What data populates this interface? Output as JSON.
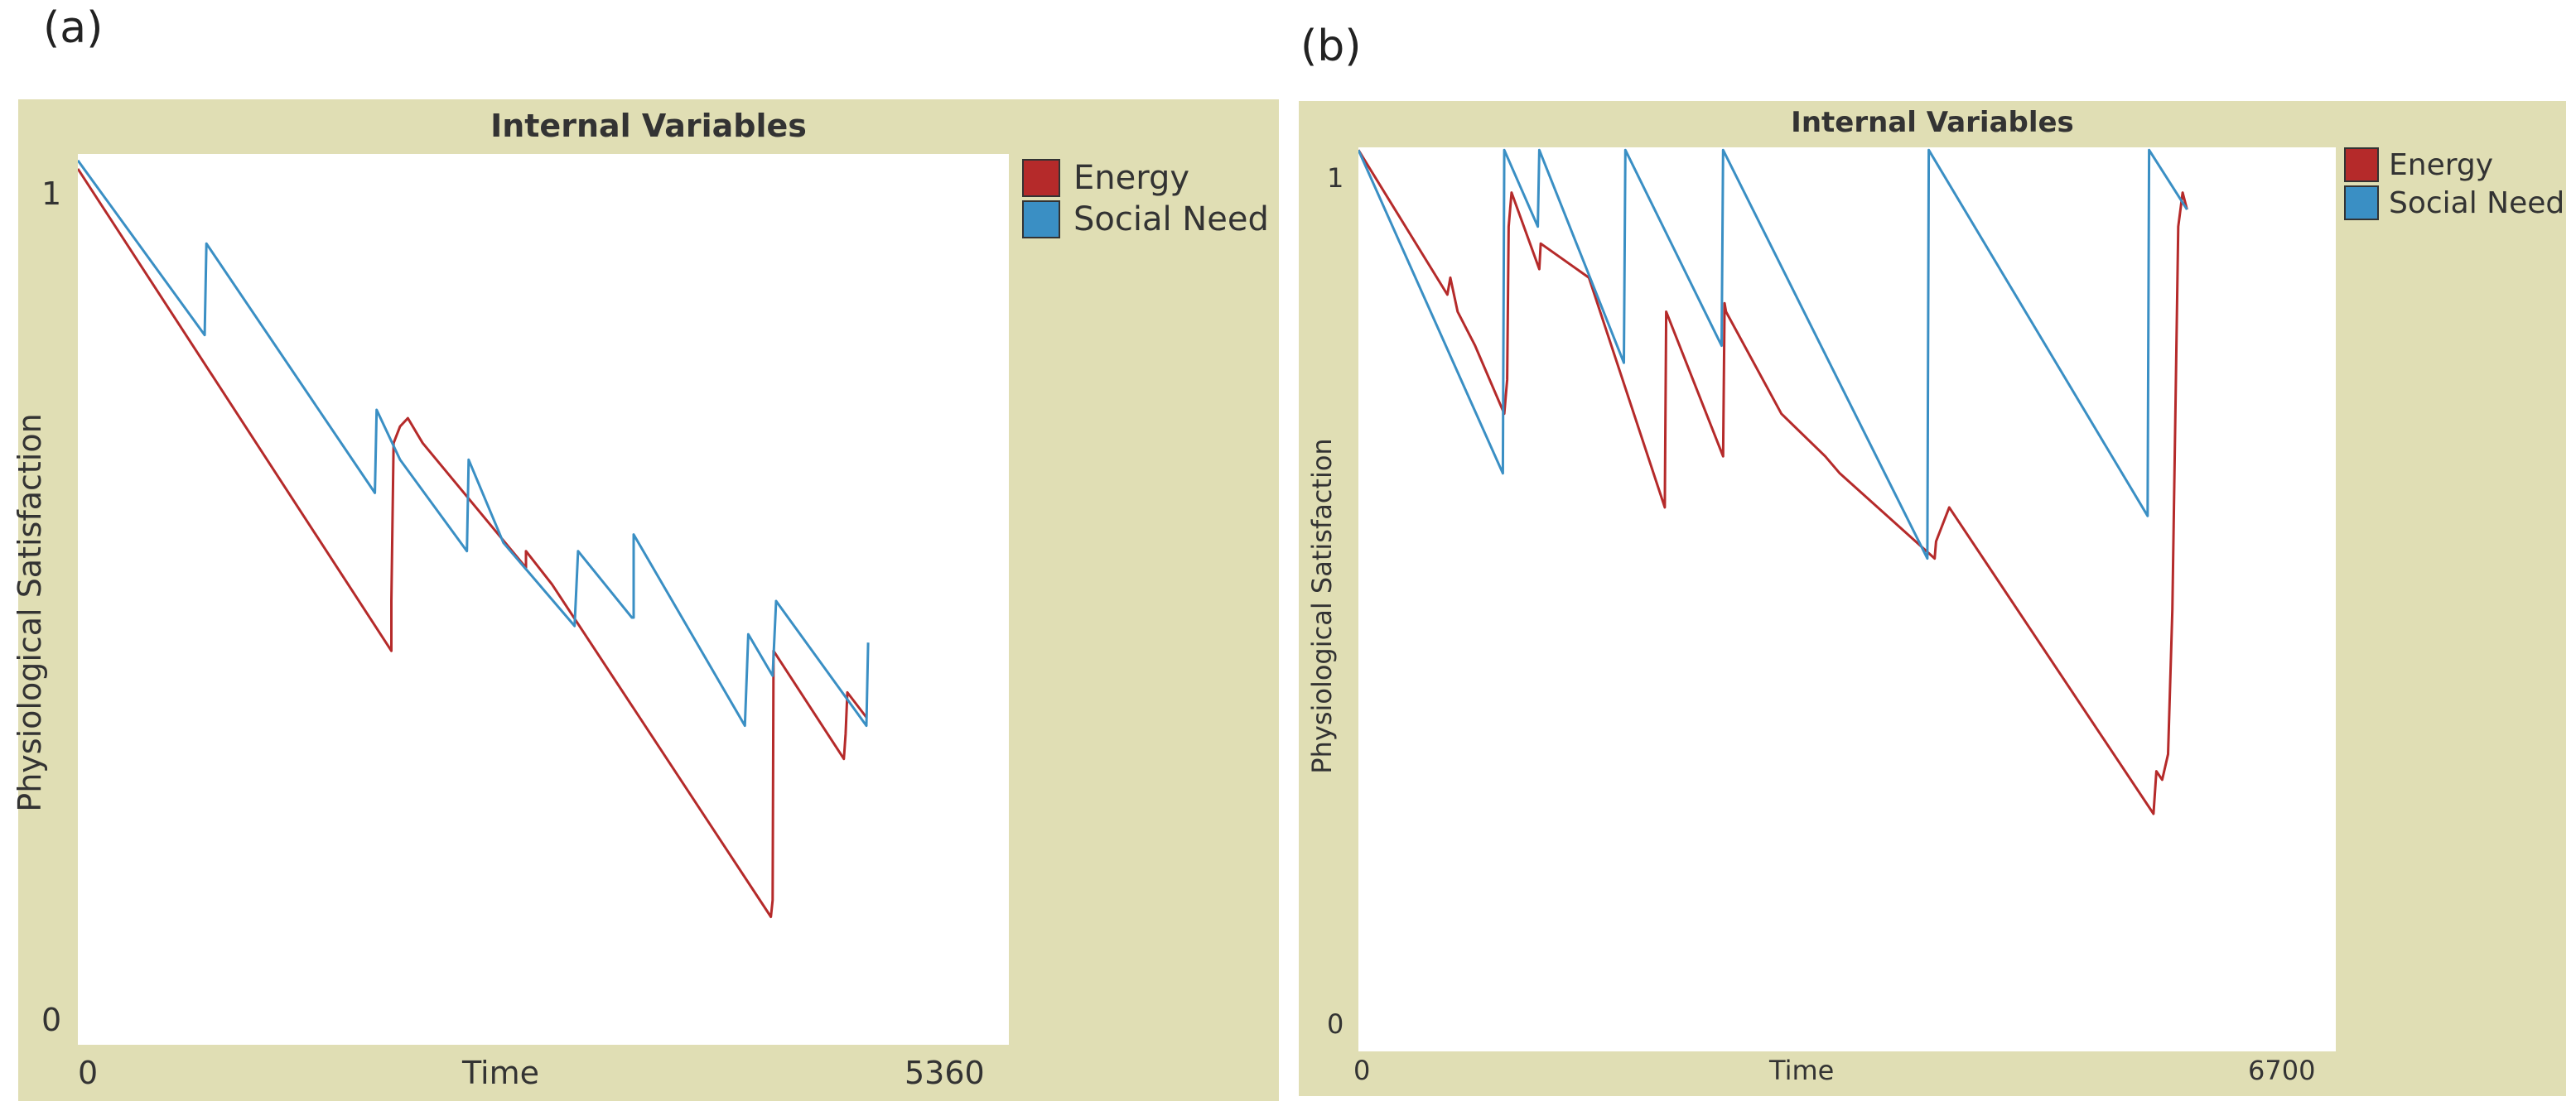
{
  "panels": {
    "a": {
      "label": "(a)"
    },
    "b": {
      "label": "(b)"
    }
  },
  "colors": {
    "energy": "#b52a2a",
    "social_need": "#3a8fc4",
    "frame": "#e0deb4"
  },
  "chart_data": [
    {
      "type": "line",
      "title": "Internal Variables",
      "xlabel": "Time",
      "ylabel": "Physiological Satisfaction",
      "xlim": [
        0,
        5360
      ],
      "ylim": [
        0,
        1
      ],
      "x_tick_labels": [
        "0",
        "5360"
      ],
      "y_tick_labels": [
        "0",
        "1"
      ],
      "legend": "right",
      "series": [
        {
          "name": "Energy",
          "color": "#b52a2a",
          "points": [
            [
              0,
              1.03
            ],
            [
              1805,
              0.45
            ],
            [
              1805,
              0.51
            ],
            [
              1818,
              0.7
            ],
            [
              1855,
              0.72
            ],
            [
              1900,
              0.73
            ],
            [
              1985,
              0.7
            ],
            [
              2580,
              0.55
            ],
            [
              2580,
              0.57
            ],
            [
              2730,
              0.53
            ],
            [
              3990,
              0.13
            ],
            [
              4000,
              0.15
            ],
            [
              4005,
              0.45
            ],
            [
              4410,
              0.32
            ],
            [
              4420,
              0.35
            ],
            [
              4430,
              0.4
            ],
            [
              4540,
              0.37
            ]
          ]
        },
        {
          "name": "Social Need",
          "color": "#3a8fc4",
          "points": [
            [
              0,
              1.04
            ],
            [
              730,
              0.83
            ],
            [
              740,
              0.94
            ],
            [
              1710,
              0.64
            ],
            [
              1720,
              0.74
            ],
            [
              1855,
              0.68
            ],
            [
              2240,
              0.57
            ],
            [
              2250,
              0.68
            ],
            [
              2450,
              0.58
            ],
            [
              2860,
              0.48
            ],
            [
              2880,
              0.57
            ],
            [
              3190,
              0.49
            ],
            [
              3200,
              0.49
            ],
            [
              3200,
              0.59
            ],
            [
              3840,
              0.36
            ],
            [
              3860,
              0.47
            ],
            [
              4000,
              0.42
            ],
            [
              4020,
              0.51
            ],
            [
              4540,
              0.36
            ],
            [
              4550,
              0.46
            ]
          ]
        }
      ]
    },
    {
      "type": "line",
      "title": "Internal Variables",
      "xlabel": "Time",
      "ylabel": "Physiological Satisfaction",
      "xlim": [
        0,
        6700
      ],
      "ylim": [
        0,
        1
      ],
      "x_tick_labels": [
        "0",
        "6700"
      ],
      "y_tick_labels": [
        "0",
        "1"
      ],
      "legend": "right",
      "series": [
        {
          "name": "Energy",
          "color": "#b52a2a",
          "points": [
            [
              0,
              1.03
            ],
            [
              610,
              0.86
            ],
            [
              630,
              0.88
            ],
            [
              680,
              0.84
            ],
            [
              800,
              0.8
            ],
            [
              1000,
              0.72
            ],
            [
              1020,
              0.76
            ],
            [
              1030,
              0.94
            ],
            [
              1050,
              0.98
            ],
            [
              1240,
              0.89
            ],
            [
              1250,
              0.92
            ],
            [
              1580,
              0.88
            ],
            [
              2100,
              0.61
            ],
            [
              2110,
              0.84
            ],
            [
              2500,
              0.67
            ],
            [
              2510,
              0.85
            ],
            [
              2520,
              0.84
            ],
            [
              2900,
              0.72
            ],
            [
              3200,
              0.67
            ],
            [
              3300,
              0.65
            ],
            [
              3950,
              0.55
            ],
            [
              3960,
              0.57
            ],
            [
              4050,
              0.61
            ],
            [
              5450,
              0.25
            ],
            [
              5470,
              0.3
            ],
            [
              5510,
              0.29
            ],
            [
              5550,
              0.32
            ],
            [
              5580,
              0.49
            ],
            [
              5620,
              0.94
            ],
            [
              5650,
              0.98
            ],
            [
              5680,
              0.96
            ]
          ]
        },
        {
          "name": "Social Need",
          "color": "#3a8fc4",
          "points": [
            [
              0,
              1.03
            ],
            [
              990,
              0.65
            ],
            [
              1000,
              1.03
            ],
            [
              1230,
              0.94
            ],
            [
              1240,
              1.03
            ],
            [
              1820,
              0.78
            ],
            [
              1830,
              1.03
            ],
            [
              2490,
              0.8
            ],
            [
              2500,
              1.03
            ],
            [
              3900,
              0.55
            ],
            [
              3910,
              1.03
            ],
            [
              5410,
              0.6
            ],
            [
              5420,
              1.03
            ],
            [
              5680,
              0.96
            ]
          ]
        }
      ]
    }
  ]
}
